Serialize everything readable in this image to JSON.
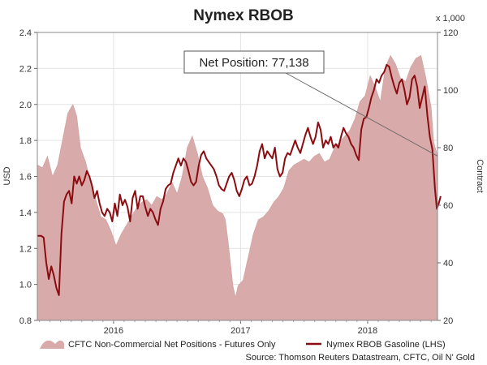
{
  "chart_data": {
    "type": "area",
    "title": "Nymex RBOB",
    "y_left_label": "USD",
    "y_right_label": "Contract",
    "y_right_unit": "x 1,000",
    "y_left_lim": [
      0.8,
      2.4
    ],
    "y_right_lim": [
      20,
      120
    ],
    "y_left_ticks": [
      "0.8",
      "1.0",
      "1.2",
      "1.4",
      "1.6",
      "1.8",
      "2.0",
      "2.2",
      "2.4"
    ],
    "y_right_ticks": [
      "20",
      "40",
      "60",
      "80",
      "100",
      "120"
    ],
    "x_range": [
      2015.4,
      2018.55
    ],
    "x_ticks": [
      {
        "label": "2016",
        "x": 2016.0
      },
      {
        "label": "2017",
        "x": 2017.0
      },
      {
        "label": "2018",
        "x": 2018.0
      }
    ],
    "grid": true,
    "legend_position": "bottom",
    "annotation": "Net Position: 77,138",
    "source": "Source: Thomson Reuters Datastream, CFTC, Oil N' Gold",
    "series": [
      {
        "name": "CFTC Non-Commercial Net Positions - Futures Only",
        "type": "area",
        "axis": "right",
        "color": "#d9aaaa",
        "points": [
          [
            2015.4,
            74
          ],
          [
            2015.44,
            73
          ],
          [
            2015.48,
            77
          ],
          [
            2015.52,
            70
          ],
          [
            2015.56,
            74
          ],
          [
            2015.6,
            83
          ],
          [
            2015.64,
            92
          ],
          [
            2015.68,
            95
          ],
          [
            2015.71,
            91
          ],
          [
            2015.74,
            80
          ],
          [
            2015.78,
            75
          ],
          [
            2015.82,
            68
          ],
          [
            2015.86,
            62
          ],
          [
            2015.9,
            56
          ],
          [
            2015.94,
            55
          ],
          [
            2015.98,
            51
          ],
          [
            2016.02,
            46
          ],
          [
            2016.06,
            50
          ],
          [
            2016.1,
            53
          ],
          [
            2016.14,
            56
          ],
          [
            2016.18,
            59
          ],
          [
            2016.22,
            61
          ],
          [
            2016.26,
            62
          ],
          [
            2016.3,
            60
          ],
          [
            2016.34,
            63
          ],
          [
            2016.38,
            62
          ],
          [
            2016.42,
            64
          ],
          [
            2016.46,
            68
          ],
          [
            2016.5,
            64
          ],
          [
            2016.54,
            70
          ],
          [
            2016.58,
            80
          ],
          [
            2016.62,
            84
          ],
          [
            2016.66,
            78
          ],
          [
            2016.7,
            70
          ],
          [
            2016.74,
            66
          ],
          [
            2016.78,
            60
          ],
          [
            2016.82,
            58
          ],
          [
            2016.86,
            57
          ],
          [
            2016.88,
            55
          ],
          [
            2016.9,
            48
          ],
          [
            2016.92,
            40
          ],
          [
            2016.94,
            32
          ],
          [
            2016.96,
            28
          ],
          [
            2016.98,
            32
          ],
          [
            2017.02,
            34
          ],
          [
            2017.06,
            42
          ],
          [
            2017.1,
            50
          ],
          [
            2017.14,
            55
          ],
          [
            2017.18,
            56
          ],
          [
            2017.22,
            58
          ],
          [
            2017.26,
            61
          ],
          [
            2017.3,
            63
          ],
          [
            2017.34,
            66
          ],
          [
            2017.38,
            72
          ],
          [
            2017.42,
            74
          ],
          [
            2017.46,
            75
          ],
          [
            2017.5,
            76
          ],
          [
            2017.54,
            75
          ],
          [
            2017.58,
            77
          ],
          [
            2017.62,
            78
          ],
          [
            2017.66,
            75
          ],
          [
            2017.7,
            76
          ],
          [
            2017.74,
            80
          ],
          [
            2017.78,
            82
          ],
          [
            2017.82,
            84
          ],
          [
            2017.86,
            86
          ],
          [
            2017.9,
            90
          ],
          [
            2017.94,
            96
          ],
          [
            2017.98,
            98
          ],
          [
            2018.02,
            105
          ],
          [
            2018.06,
            101
          ],
          [
            2018.1,
            96
          ],
          [
            2018.14,
            108
          ],
          [
            2018.18,
            112
          ],
          [
            2018.22,
            109
          ],
          [
            2018.26,
            104
          ],
          [
            2018.3,
            103
          ],
          [
            2018.34,
            108
          ],
          [
            2018.38,
            111
          ],
          [
            2018.42,
            112
          ],
          [
            2018.46,
            104
          ],
          [
            2018.5,
            94
          ],
          [
            2018.52,
            82
          ],
          [
            2018.55,
            77.1
          ]
        ]
      },
      {
        "name": "Nymex RBOB Gasoline (LHS)",
        "type": "line",
        "axis": "left",
        "color": "#8b0c10",
        "points": [
          [
            2015.4,
            1.27
          ],
          [
            2015.43,
            1.27
          ],
          [
            2015.45,
            1.26
          ],
          [
            2015.47,
            1.12
          ],
          [
            2015.49,
            1.03
          ],
          [
            2015.51,
            1.1
          ],
          [
            2015.53,
            1.05
          ],
          [
            2015.55,
            0.98
          ],
          [
            2015.57,
            0.94
          ],
          [
            2015.59,
            1.28
          ],
          [
            2015.61,
            1.46
          ],
          [
            2015.63,
            1.5
          ],
          [
            2015.65,
            1.52
          ],
          [
            2015.67,
            1.45
          ],
          [
            2015.69,
            1.6
          ],
          [
            2015.71,
            1.56
          ],
          [
            2015.73,
            1.6
          ],
          [
            2015.75,
            1.55
          ],
          [
            2015.77,
            1.58
          ],
          [
            2015.79,
            1.63
          ],
          [
            2015.81,
            1.6
          ],
          [
            2015.83,
            1.55
          ],
          [
            2015.85,
            1.48
          ],
          [
            2015.87,
            1.52
          ],
          [
            2015.89,
            1.45
          ],
          [
            2015.91,
            1.4
          ],
          [
            2015.93,
            1.38
          ],
          [
            2015.95,
            1.42
          ],
          [
            2015.97,
            1.4
          ],
          [
            2015.99,
            1.35
          ],
          [
            2016.01,
            1.45
          ],
          [
            2016.03,
            1.38
          ],
          [
            2016.05,
            1.5
          ],
          [
            2016.07,
            1.44
          ],
          [
            2016.09,
            1.47
          ],
          [
            2016.11,
            1.43
          ],
          [
            2016.13,
            1.35
          ],
          [
            2016.15,
            1.48
          ],
          [
            2016.17,
            1.52
          ],
          [
            2016.19,
            1.42
          ],
          [
            2016.21,
            1.49
          ],
          [
            2016.23,
            1.49
          ],
          [
            2016.25,
            1.43
          ],
          [
            2016.27,
            1.38
          ],
          [
            2016.29,
            1.42
          ],
          [
            2016.31,
            1.4
          ],
          [
            2016.33,
            1.36
          ],
          [
            2016.35,
            1.33
          ],
          [
            2016.37,
            1.42
          ],
          [
            2016.39,
            1.46
          ],
          [
            2016.41,
            1.53
          ],
          [
            2016.43,
            1.55
          ],
          [
            2016.45,
            1.56
          ],
          [
            2016.47,
            1.62
          ],
          [
            2016.49,
            1.66
          ],
          [
            2016.51,
            1.7
          ],
          [
            2016.53,
            1.66
          ],
          [
            2016.55,
            1.7
          ],
          [
            2016.57,
            1.68
          ],
          [
            2016.59,
            1.63
          ],
          [
            2016.61,
            1.57
          ],
          [
            2016.63,
            1.55
          ],
          [
            2016.65,
            1.57
          ],
          [
            2016.67,
            1.66
          ],
          [
            2016.69,
            1.72
          ],
          [
            2016.71,
            1.74
          ],
          [
            2016.73,
            1.7
          ],
          [
            2016.75,
            1.68
          ],
          [
            2016.77,
            1.66
          ],
          [
            2016.79,
            1.64
          ],
          [
            2016.81,
            1.6
          ],
          [
            2016.83,
            1.55
          ],
          [
            2016.85,
            1.53
          ],
          [
            2016.87,
            1.52
          ],
          [
            2016.89,
            1.56
          ],
          [
            2016.91,
            1.6
          ],
          [
            2016.93,
            1.62
          ],
          [
            2016.95,
            1.58
          ],
          [
            2016.97,
            1.52
          ],
          [
            2016.99,
            1.49
          ],
          [
            2017.01,
            1.53
          ],
          [
            2017.03,
            1.58
          ],
          [
            2017.05,
            1.6
          ],
          [
            2017.07,
            1.55
          ],
          [
            2017.09,
            1.56
          ],
          [
            2017.11,
            1.6
          ],
          [
            2017.13,
            1.66
          ],
          [
            2017.15,
            1.74
          ],
          [
            2017.17,
            1.78
          ],
          [
            2017.19,
            1.7
          ],
          [
            2017.21,
            1.74
          ],
          [
            2017.23,
            1.72
          ],
          [
            2017.25,
            1.7
          ],
          [
            2017.27,
            1.76
          ],
          [
            2017.29,
            1.64
          ],
          [
            2017.31,
            1.6
          ],
          [
            2017.33,
            1.62
          ],
          [
            2017.35,
            1.7
          ],
          [
            2017.37,
            1.73
          ],
          [
            2017.39,
            1.72
          ],
          [
            2017.41,
            1.76
          ],
          [
            2017.43,
            1.8
          ],
          [
            2017.45,
            1.76
          ],
          [
            2017.47,
            1.73
          ],
          [
            2017.49,
            1.78
          ],
          [
            2017.51,
            1.83
          ],
          [
            2017.53,
            1.87
          ],
          [
            2017.55,
            1.82
          ],
          [
            2017.57,
            1.78
          ],
          [
            2017.59,
            1.82
          ],
          [
            2017.61,
            1.9
          ],
          [
            2017.63,
            1.86
          ],
          [
            2017.65,
            1.76
          ],
          [
            2017.67,
            1.8
          ],
          [
            2017.69,
            1.78
          ],
          [
            2017.71,
            1.82
          ],
          [
            2017.73,
            1.76
          ],
          [
            2017.75,
            1.78
          ],
          [
            2017.77,
            1.76
          ],
          [
            2017.79,
            1.82
          ],
          [
            2017.81,
            1.87
          ],
          [
            2017.83,
            1.84
          ],
          [
            2017.85,
            1.82
          ],
          [
            2017.87,
            1.78
          ],
          [
            2017.89,
            1.76
          ],
          [
            2017.91,
            1.72
          ],
          [
            2017.93,
            1.69
          ],
          [
            2017.95,
            1.86
          ],
          [
            2017.97,
            1.92
          ],
          [
            2017.99,
            1.93
          ],
          [
            2018.01,
            1.98
          ],
          [
            2018.03,
            2.04
          ],
          [
            2018.05,
            2.08
          ],
          [
            2018.07,
            2.14
          ],
          [
            2018.09,
            2.12
          ],
          [
            2018.11,
            2.16
          ],
          [
            2018.13,
            2.18
          ],
          [
            2018.15,
            2.22
          ],
          [
            2018.17,
            2.21
          ],
          [
            2018.19,
            2.15
          ],
          [
            2018.21,
            2.1
          ],
          [
            2018.23,
            2.06
          ],
          [
            2018.25,
            2.12
          ],
          [
            2018.27,
            2.14
          ],
          [
            2018.29,
            2.08
          ],
          [
            2018.31,
            2.0
          ],
          [
            2018.33,
            2.04
          ],
          [
            2018.35,
            2.14
          ],
          [
            2018.37,
            2.16
          ],
          [
            2018.39,
            2.1
          ],
          [
            2018.41,
            1.98
          ],
          [
            2018.43,
            2.04
          ],
          [
            2018.45,
            2.1
          ],
          [
            2018.47,
            1.94
          ],
          [
            2018.49,
            1.82
          ],
          [
            2018.51,
            1.75
          ],
          [
            2018.53,
            1.53
          ],
          [
            2018.545,
            1.42
          ],
          [
            2018.56,
            1.45
          ],
          [
            2018.575,
            1.49
          ]
        ]
      }
    ]
  }
}
